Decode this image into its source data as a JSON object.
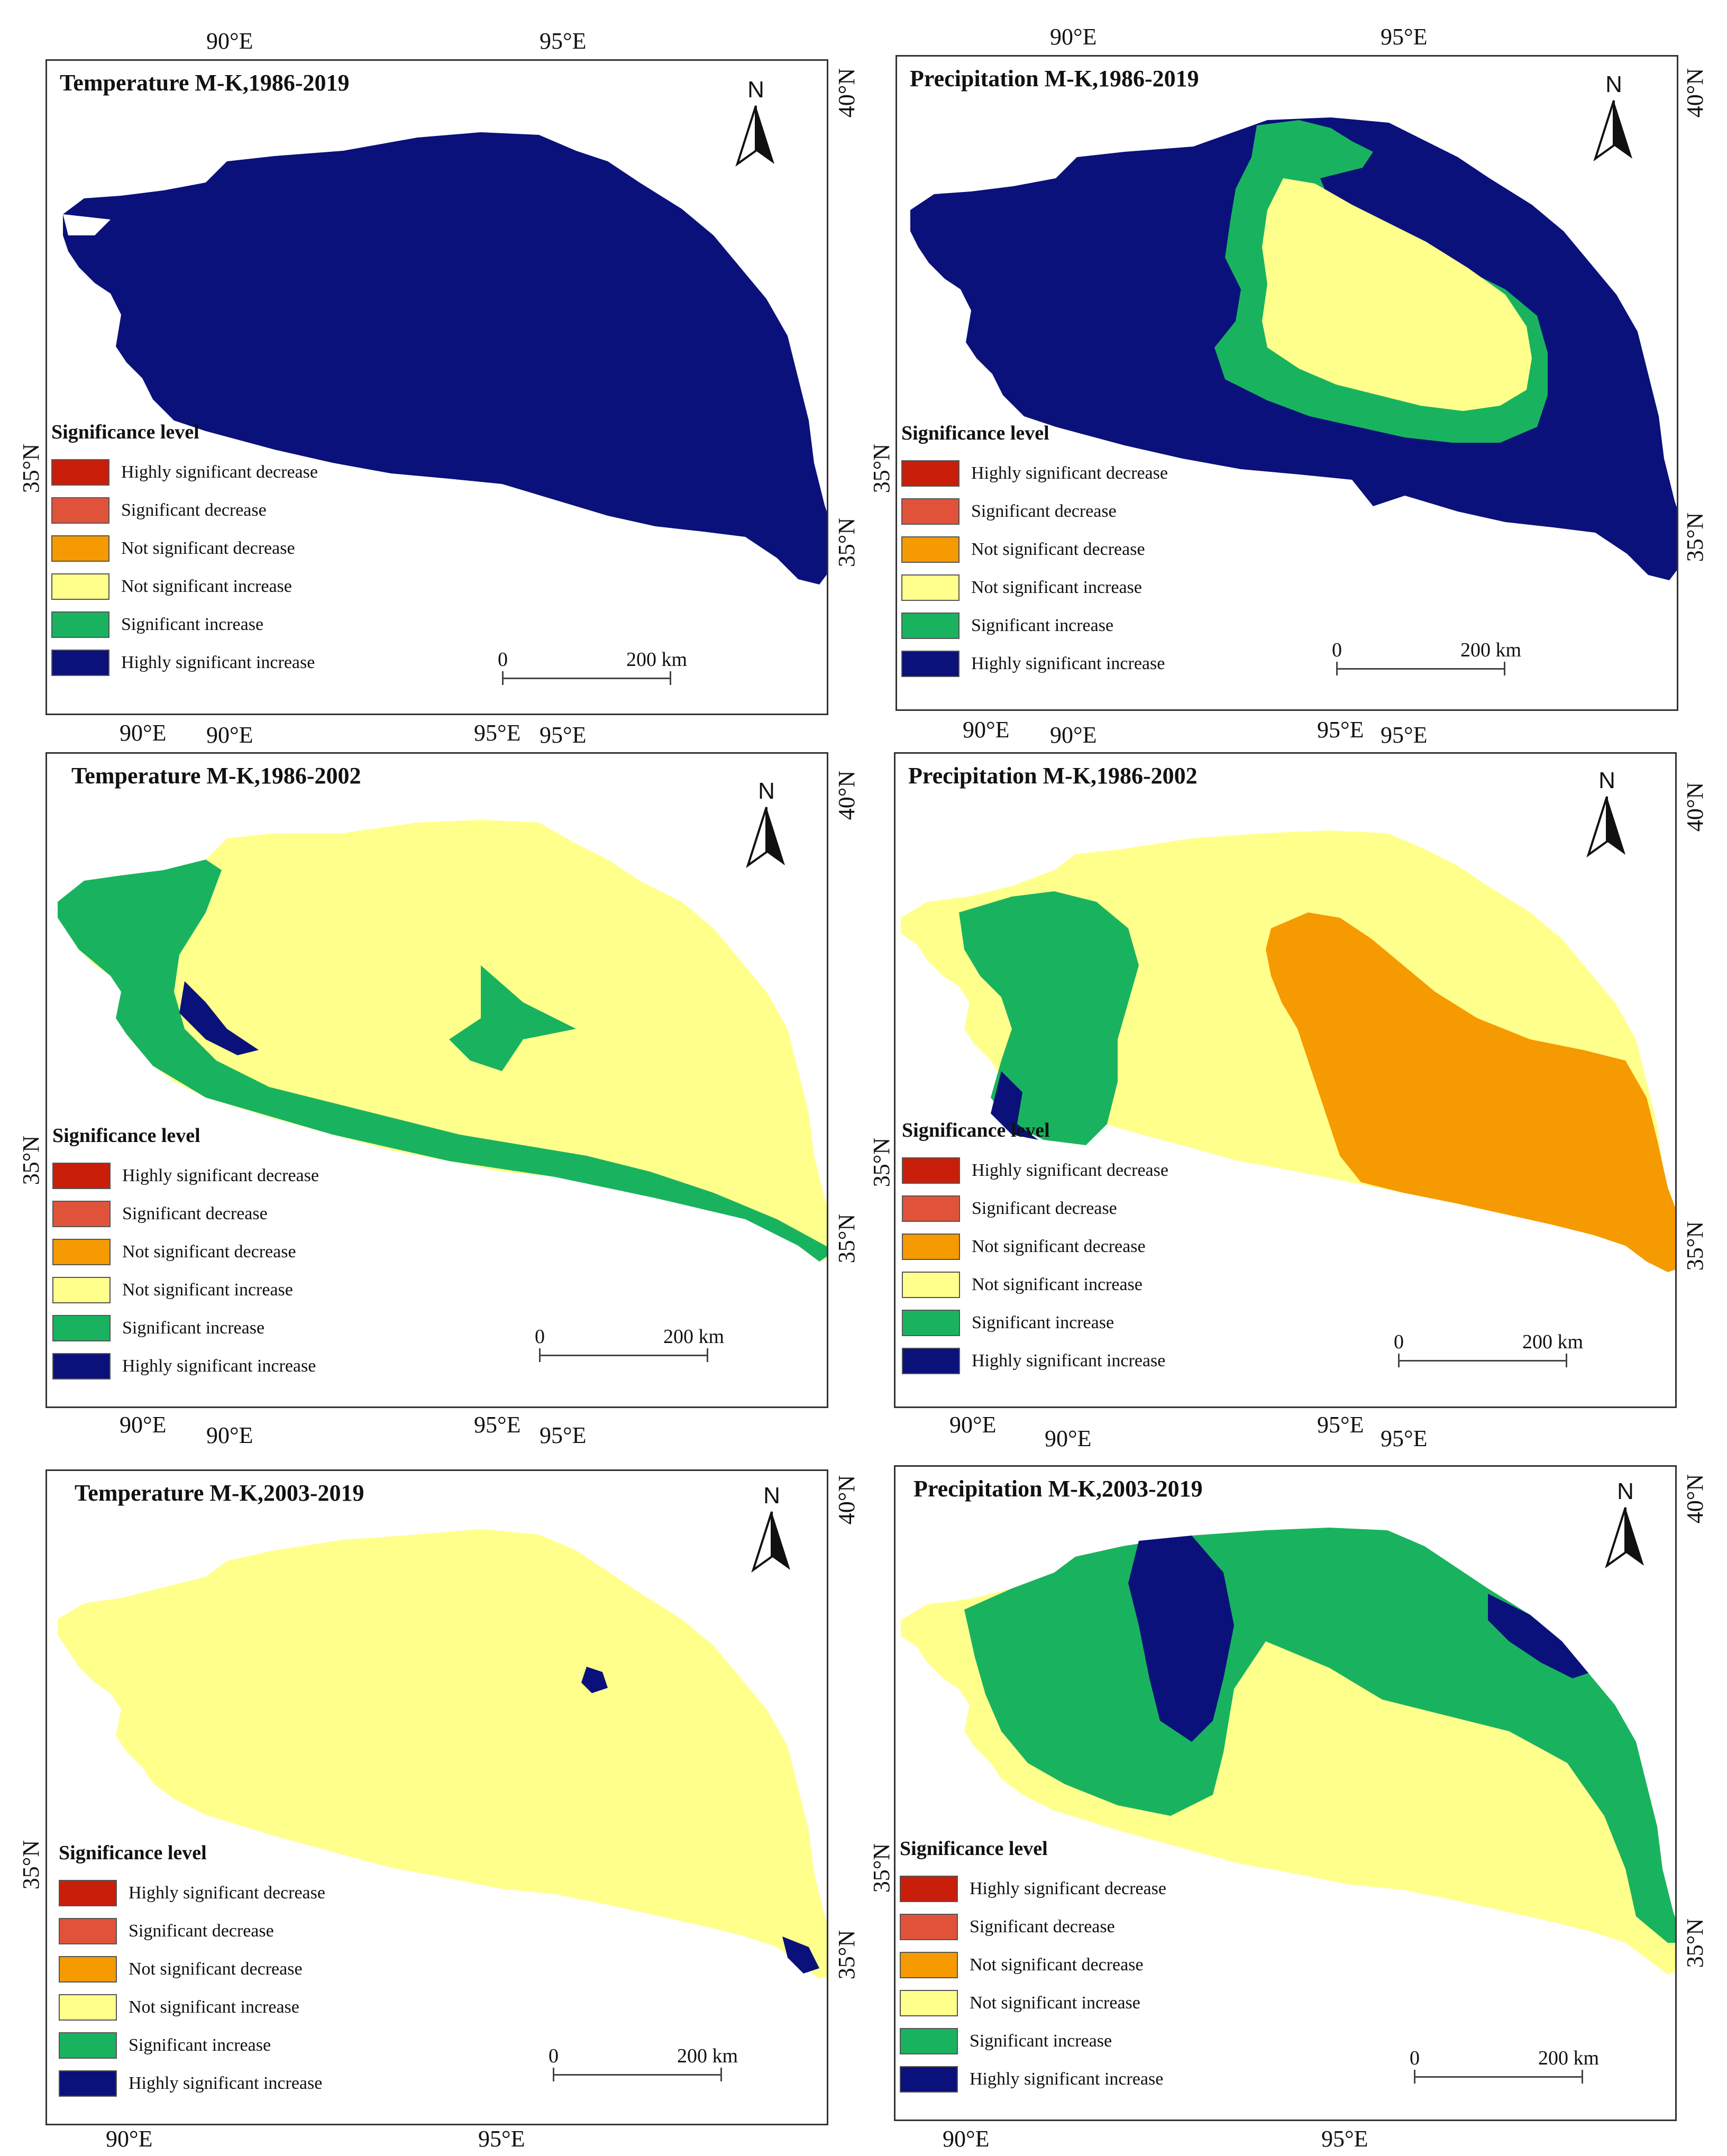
{
  "colors": {
    "highly_significant_decrease": "#c81e0a",
    "significant_decrease": "#e0533a",
    "not_significant_decrease": "#f59a00",
    "not_significant_increase": "#ffff8c",
    "significant_increase": "#19b35f",
    "highly_significant_increase": "#0a117a"
  },
  "legend": {
    "title": "Significance level",
    "items": [
      {
        "label": "Highly significant decrease",
        "color": "#c81e0a"
      },
      {
        "label": "Significant decrease",
        "color": "#e0533a"
      },
      {
        "label": "Not significant decrease",
        "color": "#f59a00"
      },
      {
        "label": "Not significant increase",
        "color": "#ffff8c"
      },
      {
        "label": "Significant increase",
        "color": "#19b35f"
      },
      {
        "label": "Highly significant increase",
        "color": "#0a117a"
      }
    ]
  },
  "scale": {
    "start": "0",
    "end": "200 km"
  },
  "north_label": "N",
  "ticks": {
    "lon90": "90°E",
    "lon95": "95°E",
    "lat35": "35°N",
    "lat40": "40°N"
  },
  "panels": [
    {
      "title": "Temperature M-K,1986-2019",
      "base_color": "#0a117a",
      "variable": "temperature"
    },
    {
      "title": "Precipitation M-K,1986-2019",
      "base_color": "#0a117a",
      "variable": "precipitation"
    },
    {
      "title": "Temperature M-K,1986-2002",
      "base_color": "#ffff8c",
      "variable": "temperature"
    },
    {
      "title": "Precipitation M-K,1986-2002",
      "base_color": "#ffff8c",
      "variable": "precipitation"
    },
    {
      "title": "Temperature M-K,2003-2019",
      "base_color": "#ffff8c",
      "variable": "temperature"
    },
    {
      "title": "Precipitation M-K,2003-2019",
      "base_color": "#ffff8c",
      "variable": "precipitation"
    }
  ]
}
